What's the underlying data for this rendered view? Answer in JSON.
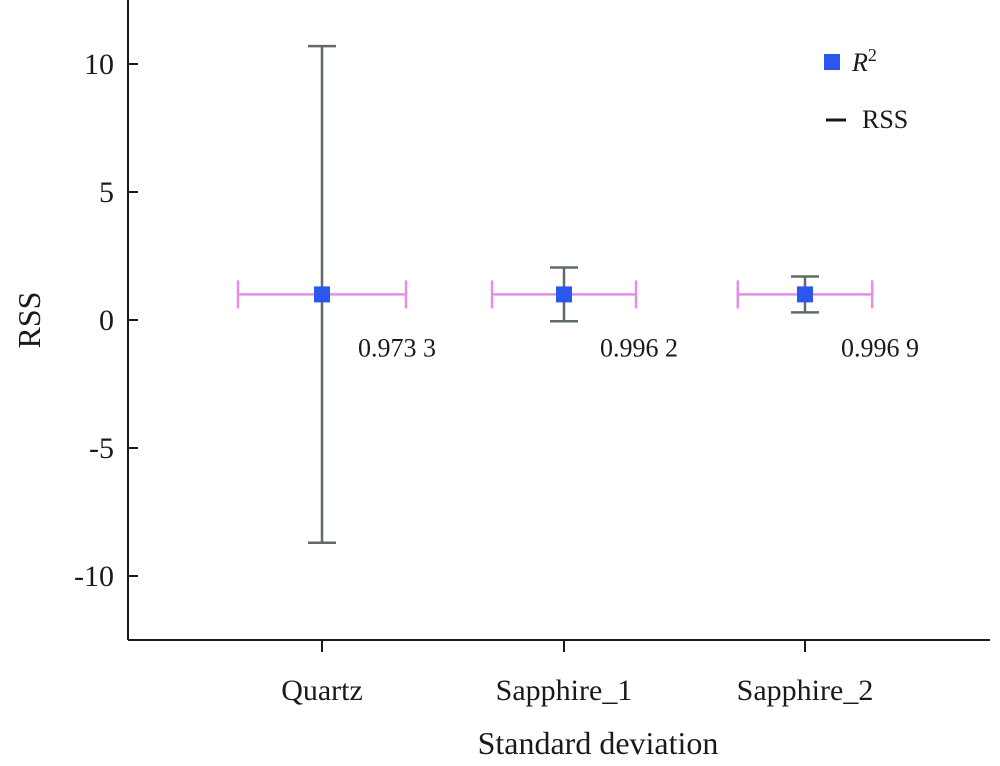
{
  "chart_data": {
    "type": "scatter",
    "title": "",
    "xlabel": "Standard deviation",
    "ylabel": "RSS",
    "categories": [
      "Quartz",
      "Sapphire_1",
      "Sapphire_2"
    ],
    "ylim": [
      -12.5,
      12.5
    ],
    "yticks": [
      {
        "value": 10,
        "label": "10"
      },
      {
        "value": 5,
        "label": "5"
      },
      {
        "value": 0,
        "label": "0"
      },
      {
        "value": -5,
        "label": "-5"
      },
      {
        "value": -10,
        "label": "-10"
      }
    ],
    "grid": false,
    "legend": {
      "placement": "top-right",
      "marker_entry": {
        "label_prefix": "R",
        "label_superscript": "2"
      },
      "line_entry": {
        "label": "RSS"
      }
    },
    "colors": {
      "marker": "#2b57f0",
      "vertical_error": "#5f6b6b",
      "horizontal_error": "#e38fe8",
      "axis": "#1a1a1a"
    },
    "points": [
      {
        "category": "Quartz",
        "y": 1.0,
        "y_low": -8.7,
        "y_high": 10.7,
        "x_half_width": 0.35,
        "r2_label": "0.973 3"
      },
      {
        "category": "Sapphire_1",
        "y": 1.0,
        "y_low": -0.05,
        "y_high": 2.05,
        "x_half_width": 0.3,
        "r2_label": "0.996 2"
      },
      {
        "category": "Sapphire_2",
        "y": 1.0,
        "y_low": 0.3,
        "y_high": 1.7,
        "x_half_width": 0.28,
        "r2_label": "0.996 9"
      }
    ]
  }
}
